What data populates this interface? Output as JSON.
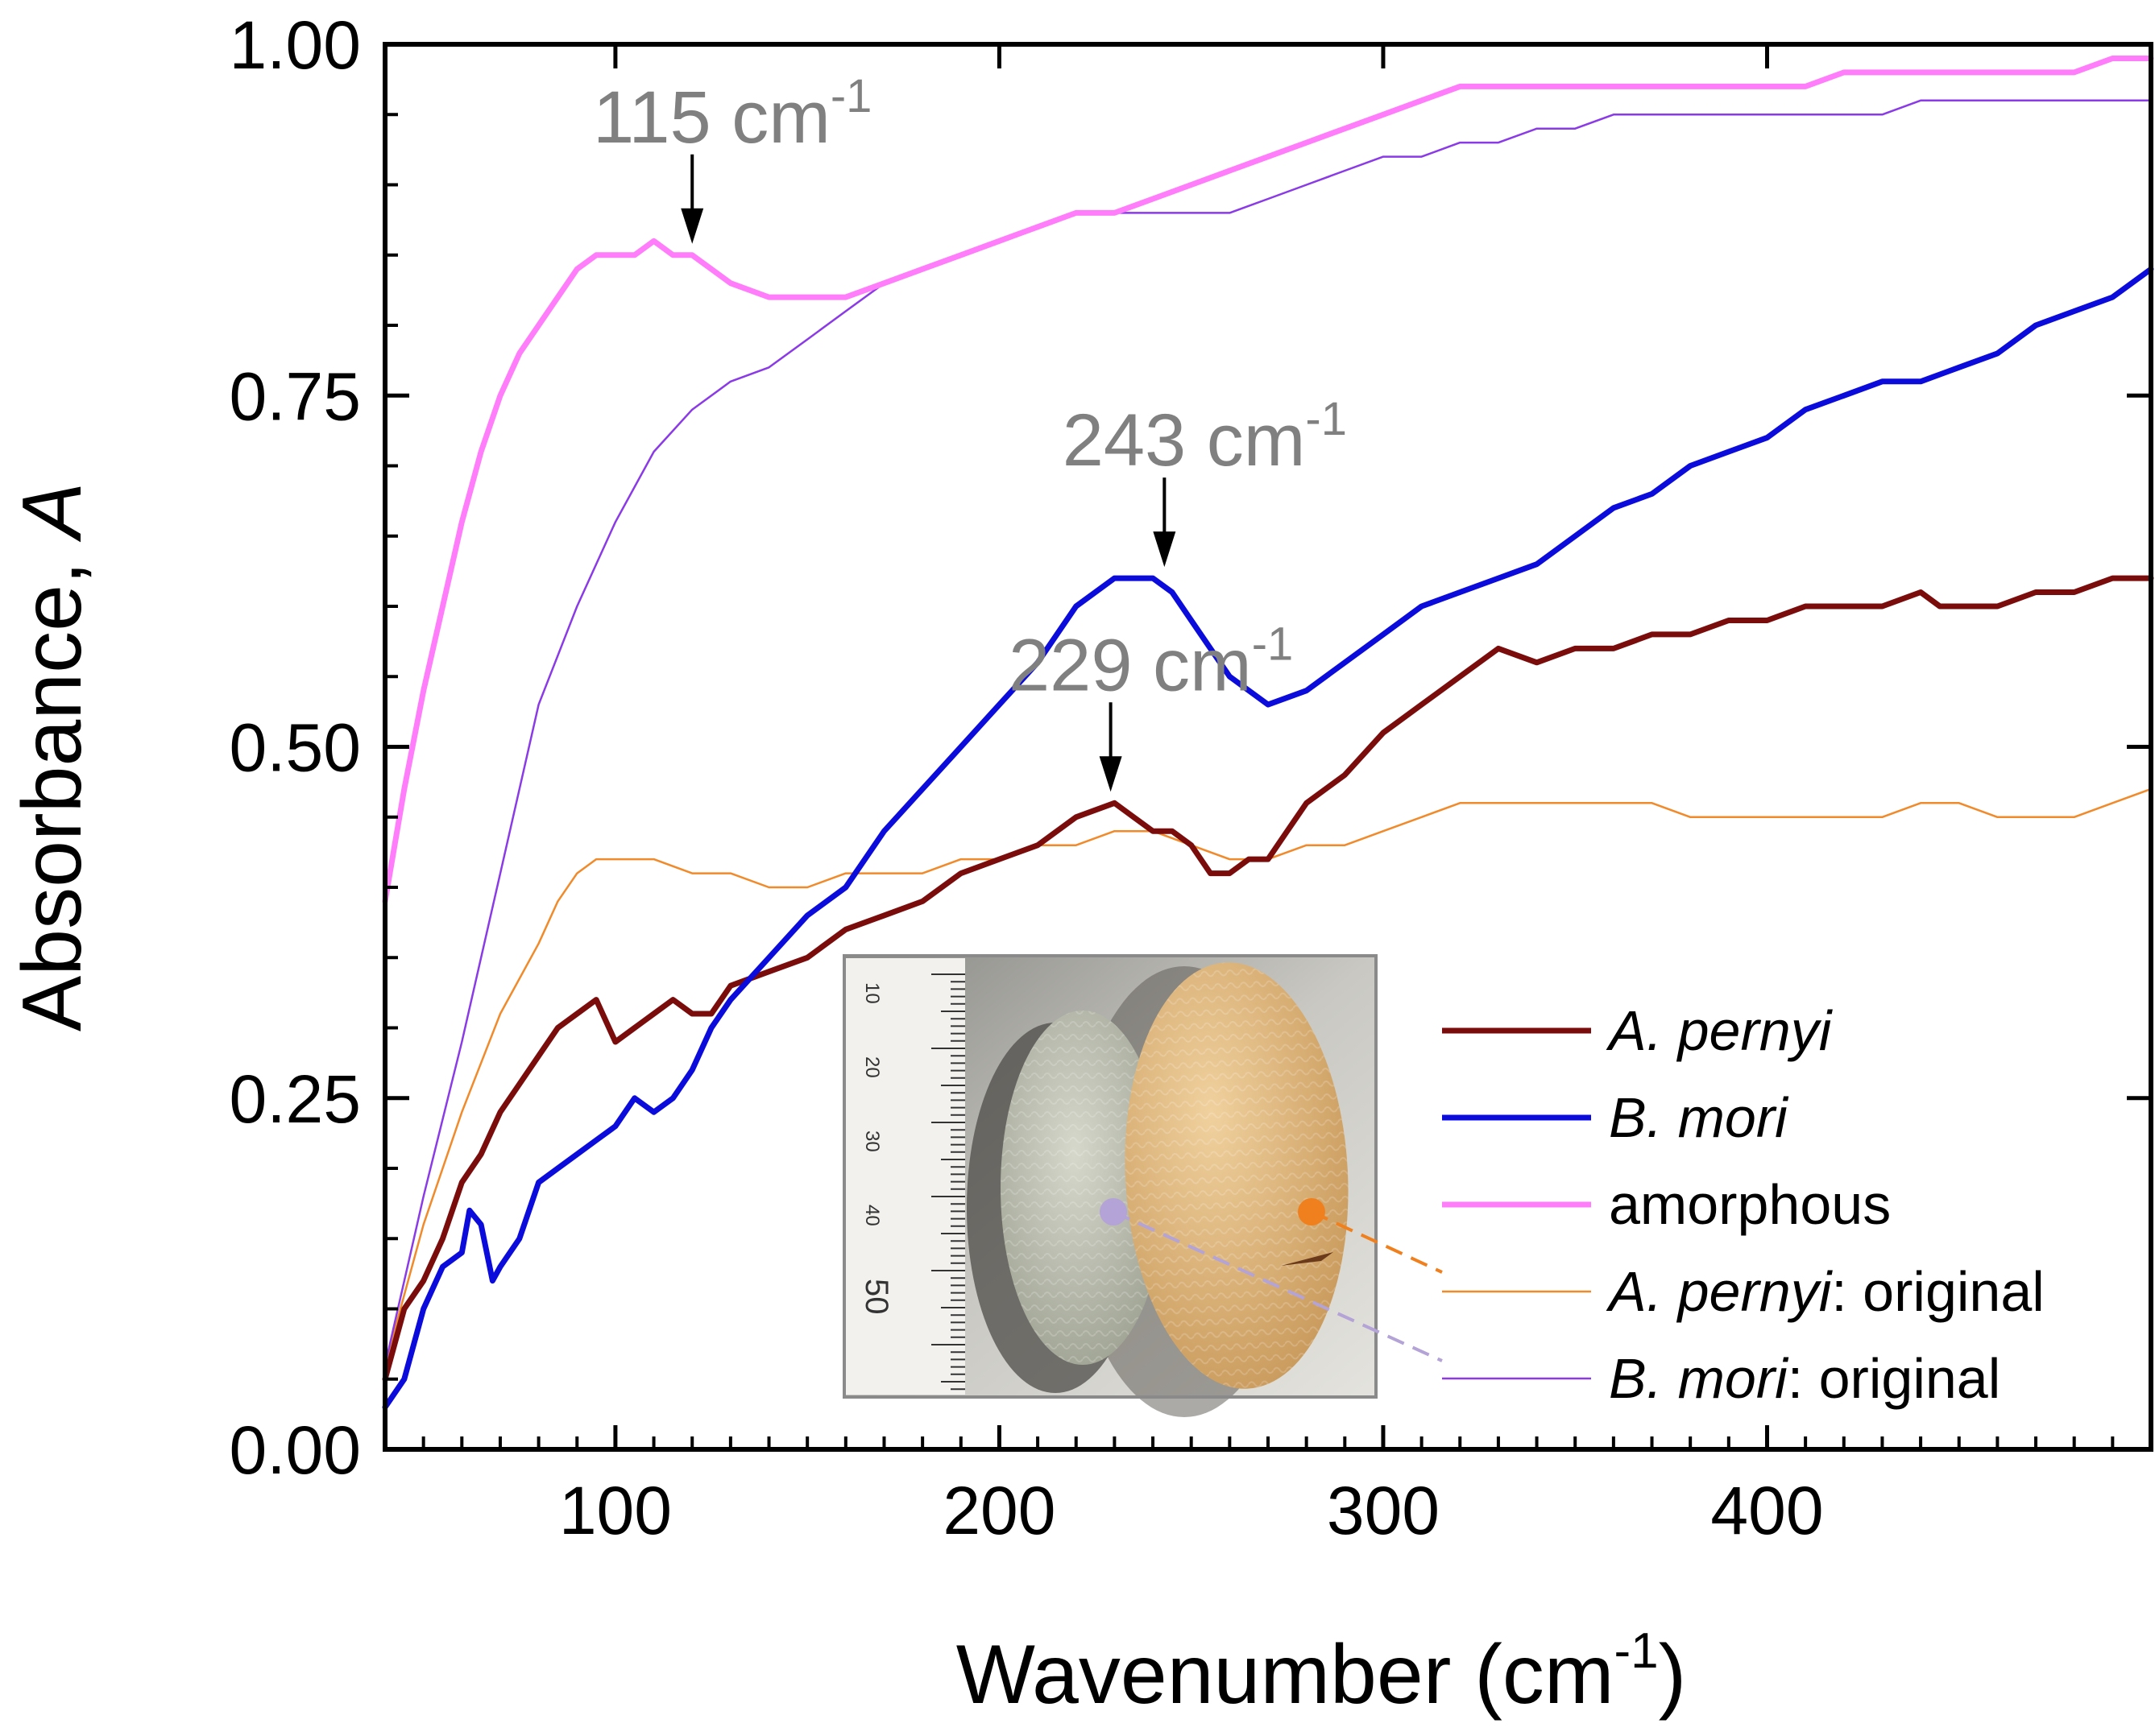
{
  "chart_data": {
    "type": "line",
    "title": "",
    "xlabel": "Wavenumber (cm",
    "xlabel_sup": "-1",
    "xlabel_close": ")",
    "ylabel": "Absorbance, ",
    "ylabel_italic": "A",
    "xlim": [
      40,
      500
    ],
    "ylim": [
      0,
      1.0
    ],
    "x_ticks": [
      100,
      200,
      300,
      400
    ],
    "x_tick_labels": [
      "100",
      "200",
      "300",
      "400"
    ],
    "y_ticks": [
      0,
      0.25,
      0.5,
      0.75,
      1.0
    ],
    "y_tick_labels": [
      "0.00",
      "0.25",
      "0.50",
      "0.75",
      "1.00"
    ],
    "series": [
      {
        "key": "ap",
        "name": "A. pernyi",
        "color": "#7a0c0c",
        "style": "thick",
        "x": [
          40,
          45,
          50,
          55,
          60,
          65,
          70,
          75,
          80,
          85,
          90,
          95,
          100,
          105,
          110,
          115,
          120,
          125,
          130,
          140,
          150,
          160,
          170,
          180,
          190,
          200,
          210,
          220,
          230,
          235,
          240,
          245,
          250,
          255,
          260,
          265,
          270,
          275,
          280,
          290,
          300,
          310,
          320,
          330,
          340,
          350,
          360,
          370,
          380,
          390,
          400,
          410,
          420,
          430,
          440,
          445,
          450,
          460,
          470,
          480,
          490,
          500
        ],
        "y": [
          0.05,
          0.1,
          0.12,
          0.15,
          0.19,
          0.21,
          0.24,
          0.26,
          0.28,
          0.3,
          0.31,
          0.32,
          0.29,
          0.3,
          0.31,
          0.32,
          0.31,
          0.31,
          0.33,
          0.34,
          0.35,
          0.37,
          0.38,
          0.39,
          0.41,
          0.42,
          0.43,
          0.45,
          0.46,
          0.45,
          0.44,
          0.44,
          0.43,
          0.41,
          0.41,
          0.42,
          0.42,
          0.44,
          0.46,
          0.48,
          0.51,
          0.53,
          0.55,
          0.57,
          0.56,
          0.57,
          0.57,
          0.58,
          0.58,
          0.59,
          0.59,
          0.6,
          0.6,
          0.6,
          0.61,
          0.6,
          0.6,
          0.6,
          0.61,
          0.61,
          0.62,
          0.62
        ]
      },
      {
        "key": "bm",
        "name": "B. mori",
        "color": "#0b0bdc",
        "style": "thick",
        "x": [
          40,
          45,
          50,
          55,
          60,
          62,
          65,
          68,
          70,
          75,
          80,
          85,
          90,
          95,
          100,
          105,
          110,
          115,
          120,
          125,
          130,
          140,
          150,
          160,
          170,
          180,
          190,
          200,
          210,
          220,
          230,
          240,
          245,
          250,
          260,
          270,
          280,
          290,
          300,
          310,
          320,
          330,
          340,
          350,
          360,
          370,
          380,
          390,
          400,
          410,
          420,
          430,
          440,
          450,
          460,
          470,
          480,
          490,
          500
        ],
        "y": [
          0.03,
          0.05,
          0.1,
          0.13,
          0.14,
          0.17,
          0.16,
          0.12,
          0.13,
          0.15,
          0.19,
          0.2,
          0.21,
          0.22,
          0.23,
          0.25,
          0.24,
          0.25,
          0.27,
          0.3,
          0.32,
          0.35,
          0.38,
          0.4,
          0.44,
          0.47,
          0.5,
          0.53,
          0.56,
          0.6,
          0.62,
          0.62,
          0.61,
          0.59,
          0.55,
          0.53,
          0.54,
          0.56,
          0.58,
          0.6,
          0.61,
          0.62,
          0.63,
          0.65,
          0.67,
          0.68,
          0.7,
          0.71,
          0.72,
          0.74,
          0.75,
          0.76,
          0.76,
          0.77,
          0.78,
          0.8,
          0.81,
          0.82,
          0.84
        ]
      },
      {
        "key": "am",
        "name": "amorphous",
        "color": "#ff7dfa",
        "style": "thick",
        "x": [
          40,
          45,
          50,
          55,
          60,
          65,
          70,
          75,
          80,
          85,
          90,
          95,
          100,
          105,
          110,
          115,
          120,
          125,
          130,
          140,
          150,
          160,
          170,
          180,
          190,
          200,
          210,
          220,
          230,
          240,
          250,
          260,
          270,
          280,
          290,
          300,
          310,
          320,
          330,
          340,
          350,
          360,
          370,
          380,
          390,
          400,
          410,
          420,
          430,
          440,
          450,
          460,
          470,
          480,
          490,
          500
        ],
        "y": [
          0.39,
          0.47,
          0.54,
          0.6,
          0.66,
          0.71,
          0.75,
          0.78,
          0.8,
          0.82,
          0.84,
          0.85,
          0.85,
          0.85,
          0.86,
          0.85,
          0.85,
          0.84,
          0.83,
          0.82,
          0.82,
          0.82,
          0.83,
          0.84,
          0.85,
          0.86,
          0.87,
          0.88,
          0.88,
          0.89,
          0.9,
          0.91,
          0.92,
          0.93,
          0.94,
          0.95,
          0.96,
          0.97,
          0.97,
          0.97,
          0.97,
          0.97,
          0.97,
          0.97,
          0.97,
          0.97,
          0.97,
          0.98,
          0.98,
          0.98,
          0.98,
          0.98,
          0.98,
          0.98,
          0.99,
          0.99
        ]
      },
      {
        "key": "apo",
        "name": "A. pernyi: original",
        "color": "#f08a2a",
        "style": "thin",
        "x": [
          40,
          50,
          60,
          70,
          80,
          85,
          90,
          95,
          100,
          105,
          110,
          120,
          130,
          140,
          150,
          160,
          170,
          180,
          190,
          200,
          210,
          220,
          230,
          240,
          250,
          260,
          270,
          280,
          290,
          300,
          310,
          320,
          330,
          340,
          350,
          360,
          370,
          380,
          390,
          400,
          410,
          420,
          430,
          440,
          450,
          460,
          470,
          480,
          490,
          500
        ],
        "y": [
          0.06,
          0.16,
          0.24,
          0.31,
          0.36,
          0.39,
          0.41,
          0.42,
          0.42,
          0.42,
          0.42,
          0.41,
          0.41,
          0.4,
          0.4,
          0.41,
          0.41,
          0.41,
          0.42,
          0.42,
          0.43,
          0.43,
          0.44,
          0.44,
          0.43,
          0.42,
          0.42,
          0.43,
          0.43,
          0.44,
          0.45,
          0.46,
          0.46,
          0.46,
          0.46,
          0.46,
          0.46,
          0.45,
          0.45,
          0.45,
          0.45,
          0.45,
          0.45,
          0.46,
          0.46,
          0.45,
          0.45,
          0.45,
          0.46,
          0.47
        ]
      },
      {
        "key": "bmo",
        "name": "B. mori: original",
        "color": "#8a3ae6",
        "style": "thin",
        "x": [
          40,
          50,
          60,
          70,
          75,
          80,
          90,
          100,
          110,
          120,
          130,
          140,
          150,
          160,
          170,
          180,
          190,
          200,
          210,
          220,
          230,
          240,
          250,
          260,
          270,
          280,
          290,
          300,
          310,
          320,
          330,
          340,
          350,
          360,
          370,
          380,
          390,
          400,
          410,
          420,
          430,
          440,
          450,
          460,
          470,
          480,
          490,
          500
        ],
        "y": [
          0.06,
          0.18,
          0.29,
          0.41,
          0.47,
          0.53,
          0.6,
          0.66,
          0.71,
          0.74,
          0.76,
          0.77,
          0.79,
          0.81,
          0.83,
          0.84,
          0.85,
          0.86,
          0.87,
          0.88,
          0.88,
          0.88,
          0.88,
          0.88,
          0.89,
          0.9,
          0.91,
          0.92,
          0.92,
          0.93,
          0.93,
          0.94,
          0.94,
          0.95,
          0.95,
          0.95,
          0.95,
          0.95,
          0.95,
          0.95,
          0.95,
          0.96,
          0.96,
          0.96,
          0.96,
          0.96,
          0.96,
          0.96
        ]
      }
    ],
    "annotations": [
      {
        "number": "115",
        "unit": " cm",
        "sup": "-1",
        "x": 120,
        "y": 0.85
      },
      {
        "number": "243",
        "unit": " cm",
        "sup": "-1",
        "x": 243,
        "y": 0.62
      },
      {
        "number": "229",
        "unit": " cm",
        "sup": "-1",
        "x": 229,
        "y": 0.46
      }
    ],
    "legend": {
      "placement": "bottom-right",
      "entries": [
        {
          "series": "ap",
          "italic": "A. pernyi",
          "rest": ""
        },
        {
          "series": "bm",
          "italic": "B. mori",
          "rest": ""
        },
        {
          "series": "am",
          "italic": "",
          "rest": "amorphous"
        },
        {
          "series": "apo",
          "italic": "A. pernyi",
          "rest": ": original"
        },
        {
          "series": "bmo",
          "italic": "B. mori",
          "rest": ": original"
        }
      ]
    },
    "inset": {
      "ruler_labels": [
        "10",
        "20",
        "30",
        "40",
        "50"
      ],
      "markers": [
        {
          "label": "B. mori cocoon marker",
          "color": "#b3a3d6",
          "links_to": "bmo"
        },
        {
          "label": "A. pernyi cocoon marker",
          "color": "#f0801e",
          "links_to": "apo"
        }
      ]
    }
  }
}
